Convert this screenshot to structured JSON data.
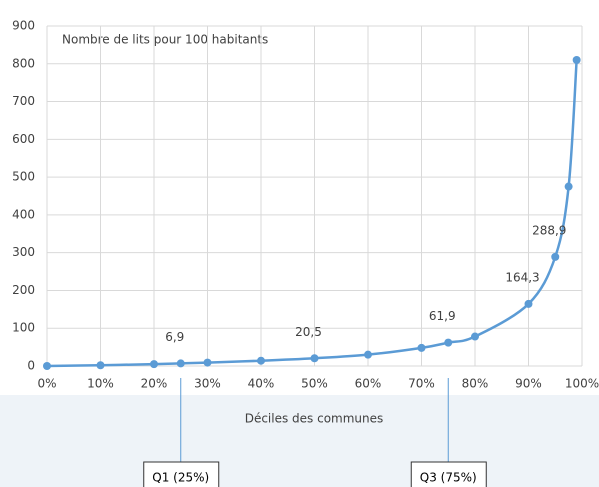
{
  "chart_data": {
    "type": "line",
    "title": "Nombre de lits pour 100 habitants",
    "x_label": "Déciles des communes",
    "x": [
      0,
      10,
      20,
      25,
      30,
      40,
      50,
      60,
      70,
      75,
      80,
      90,
      95,
      97.5,
      99
    ],
    "series": [
      {
        "name": "Nombre de lits pour 100 habitants",
        "color": "#5b9bd5",
        "values": [
          0,
          2,
          5,
          6.9,
          9,
          14,
          20.5,
          30,
          48,
          61.9,
          78,
          164.3,
          288.9,
          475,
          810
        ],
        "value_labels": [
          null,
          null,
          null,
          "6,9",
          null,
          null,
          "20,5",
          null,
          null,
          "61,9",
          null,
          "164,3",
          "288,9",
          null,
          null
        ]
      }
    ],
    "xlim": [
      0,
      100
    ],
    "xticks": [
      {
        "value": 0,
        "label": "0%"
      },
      {
        "value": 10,
        "label": "10%"
      },
      {
        "value": 20,
        "label": "20%"
      },
      {
        "value": 30,
        "label": "30%"
      },
      {
        "value": 40,
        "label": "40%"
      },
      {
        "value": 50,
        "label": "50%"
      },
      {
        "value": 60,
        "label": "60%"
      },
      {
        "value": 70,
        "label": "70%"
      },
      {
        "value": 80,
        "label": "80%"
      },
      {
        "value": 90,
        "label": "90%"
      },
      {
        "value": 100,
        "label": "100%"
      }
    ],
    "ylim": [
      0,
      900
    ],
    "yticks": [
      0,
      100,
      200,
      300,
      400,
      500,
      600,
      700,
      800,
      900
    ],
    "grid": true,
    "annotations": [
      {
        "x": 25,
        "label": "Q1 (25%)"
      },
      {
        "x": 75,
        "label": "Q3 (75%)"
      }
    ]
  }
}
